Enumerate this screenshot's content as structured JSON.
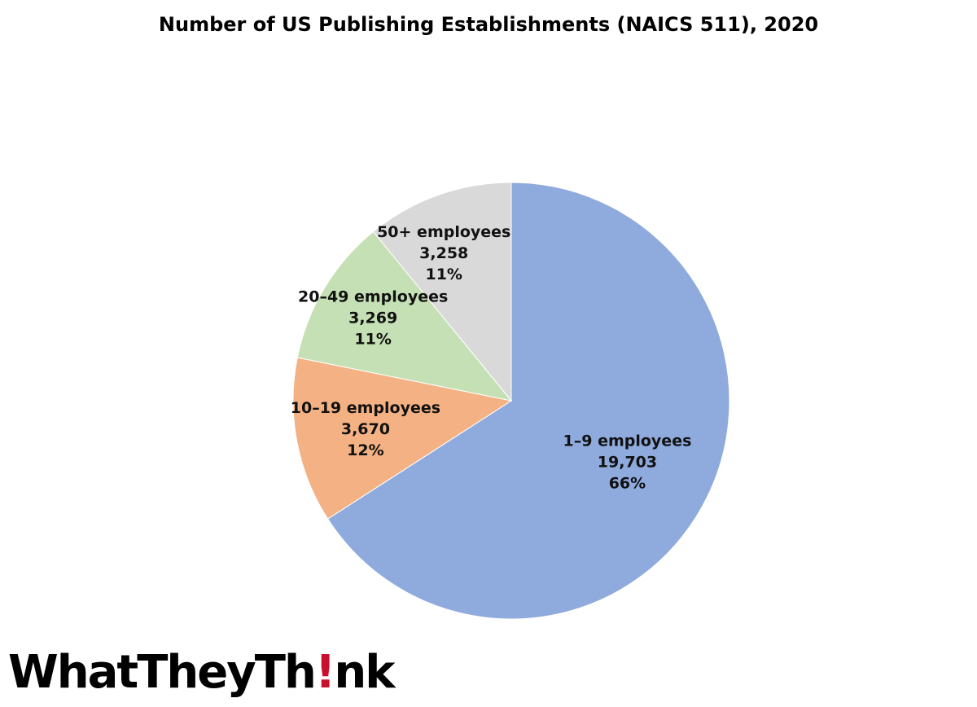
{
  "chart_data": {
    "type": "pie",
    "title": "Number of US Publishing Establishments (NAICS 511), 2020",
    "start_angle_deg": 0,
    "direction": "clockwise",
    "slices": [
      {
        "label": "1–9 employees",
        "value": 19703,
        "value_label": "19,703",
        "percent_label": "66%",
        "color": "#8faadc"
      },
      {
        "label": "10–19 employees",
        "value": 3670,
        "value_label": "3,670",
        "percent_label": "12%",
        "color": "#f4b183"
      },
      {
        "label": "20–49 employees",
        "value": 3269,
        "value_label": "3,269",
        "percent_label": "11%",
        "color": "#c5e0b4"
      },
      {
        "label": "50+ employees",
        "value": 3258,
        "value_label": "3,258",
        "percent_label": "11%",
        "color": "#d9d9d9"
      }
    ]
  },
  "logo": {
    "part1": "WhatTheyTh",
    "bang": "!",
    "part2": "nk",
    "bang_color": "#c8102e"
  }
}
